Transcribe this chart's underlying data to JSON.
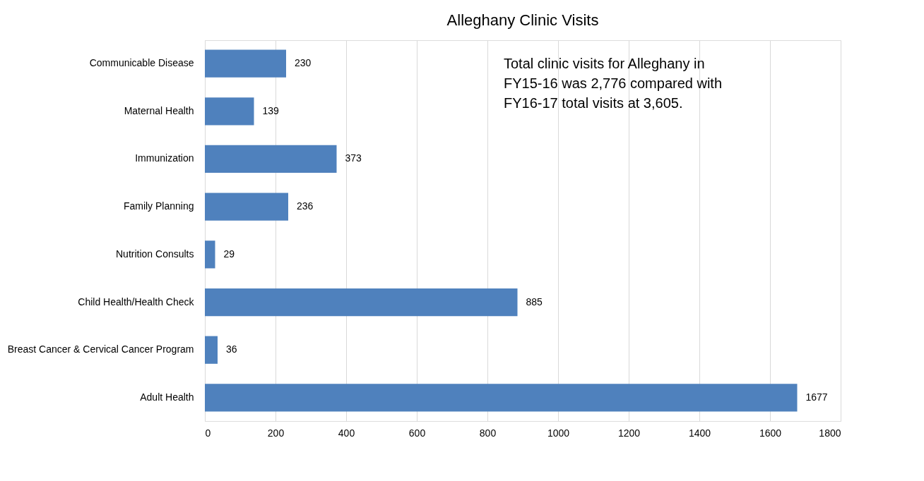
{
  "chart_data": {
    "type": "bar",
    "orientation": "horizontal",
    "title": "Alleghany Clinic Visits",
    "categories": [
      "Communicable Disease",
      "Maternal Health",
      "Immunization",
      "Family Planning",
      "Nutrition Consults",
      "Child Health/Health Check",
      "Breast Cancer & Cervical Cancer Program",
      "Adult Health"
    ],
    "values": [
      230,
      139,
      373,
      236,
      29,
      885,
      36,
      1677
    ],
    "color": "#4f81bd",
    "xlim": [
      0,
      1800
    ],
    "xticks": [
      0,
      200,
      400,
      600,
      800,
      1000,
      1200,
      1400,
      1600,
      1800
    ],
    "grid": "x",
    "data_labels": true,
    "annotations": [
      "Total clinic visits for Alleghany in\nFY15-16 was 2,776 compared with\nFY16-17 total visits at 3,605."
    ]
  }
}
